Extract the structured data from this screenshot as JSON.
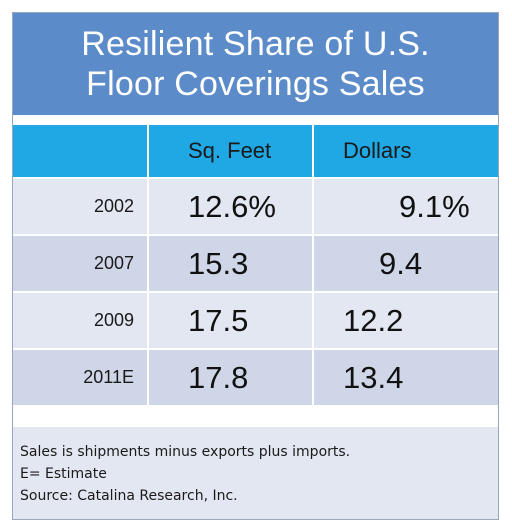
{
  "chart_data": {
    "type": "table",
    "title": "Resilient Share of  U.S.\nFloor Coverings Sales",
    "columns": [
      "",
      "Sq. Feet",
      "Dollars"
    ],
    "rows": [
      {
        "year": "2002",
        "sq_feet": "12.6%",
        "dollars": "9.1%"
      },
      {
        "year": "2007",
        "sq_feet": "15.3",
        "dollars": "9.4"
      },
      {
        "year": "2009",
        "sq_feet": "17.5",
        "dollars": "12.2"
      },
      {
        "year": "2011E",
        "sq_feet": "17.8",
        "dollars": "13.4"
      }
    ],
    "notes": [
      "Sales is shipments minus exports plus imports.",
      "E= Estimate",
      "Source: Catalina Research, Inc."
    ],
    "colors": {
      "title_bg": "#5b8bc8",
      "header_bg": "#1fa8e4",
      "row_light": "#e3e7f1",
      "row_dark": "#cfd6e8"
    }
  }
}
